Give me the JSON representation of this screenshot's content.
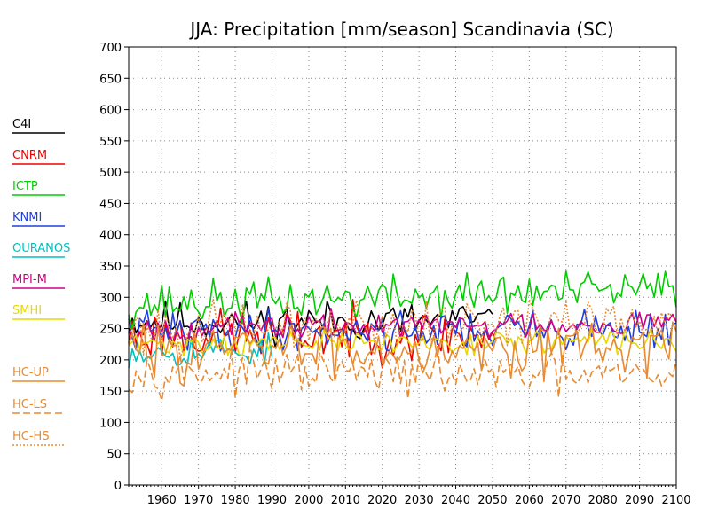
{
  "chart_data": {
    "type": "line",
    "title": "JJA: Precipitation [mm/season] Scandinavia (SC)",
    "xlabel": "",
    "ylabel": "",
    "xlim": [
      1951,
      2100
    ],
    "ylim": [
      0,
      700
    ],
    "x_ticks": [
      1960,
      1970,
      1980,
      1990,
      2000,
      2010,
      2020,
      2030,
      2040,
      2050,
      2060,
      2070,
      2080,
      2090,
      2100
    ],
    "y_ticks": [
      0,
      50,
      100,
      150,
      200,
      250,
      300,
      350,
      400,
      450,
      500,
      550,
      600,
      650,
      700
    ],
    "grid": true,
    "legend_position": "left",
    "series": [
      {
        "name": "C4I",
        "color": "#000000",
        "dash": "solid",
        "x_start": 1951,
        "x_end": 2050,
        "mean": 262,
        "amplitude": 30,
        "trend": 0,
        "seed": 11
      },
      {
        "name": "CNRM",
        "color": "#ee0000",
        "dash": "solid",
        "x_start": 1951,
        "x_end": 2051,
        "mean": 240,
        "amplitude": 38,
        "trend": 0,
        "seed": 23
      },
      {
        "name": "ICTP",
        "color": "#00cc00",
        "dash": "solid",
        "x_start": 1951,
        "x_end": 2100,
        "mean": 288,
        "amplitude": 32,
        "trend": 25,
        "seed": 37
      },
      {
        "name": "KNMI",
        "color": "#1f3fdd",
        "dash": "solid",
        "x_start": 1951,
        "x_end": 2100,
        "mean": 245,
        "amplitude": 30,
        "trend": 5,
        "seed": 41
      },
      {
        "name": "OURANOS",
        "color": "#00c0c0",
        "dash": "solid",
        "x_start": 1951,
        "x_end": 1990,
        "mean": 215,
        "amplitude": 25,
        "trend": 0,
        "seed": 53
      },
      {
        "name": "MPI-M",
        "color": "#cc0088",
        "dash": "solid",
        "x_start": 1951,
        "x_end": 2100,
        "mean": 250,
        "amplitude": 20,
        "trend": 10,
        "seed": 67
      },
      {
        "name": "SMHI",
        "color": "#e6d800",
        "dash": "solid",
        "x_start": 1951,
        "x_end": 2100,
        "mean": 225,
        "amplitude": 18,
        "trend": 5,
        "seed": 71
      },
      {
        "name": "HC-UP",
        "color": "#e88a30",
        "dash": "solid",
        "x_start": 1951,
        "x_end": 2100,
        "mean": 215,
        "amplitude": 40,
        "trend": 10,
        "seed": 83
      },
      {
        "name": "HC-LS",
        "color": "#e88a30",
        "dash": "8,4",
        "x_start": 1951,
        "x_end": 2100,
        "mean": 182,
        "amplitude": 30,
        "trend": -10,
        "seed": 97
      },
      {
        "name": "HC-HS",
        "color": "#e88a30",
        "dash": "2,2",
        "x_start": 1951,
        "x_end": 2100,
        "mean": 250,
        "amplitude": 35,
        "trend": 15,
        "seed": 101
      }
    ]
  }
}
